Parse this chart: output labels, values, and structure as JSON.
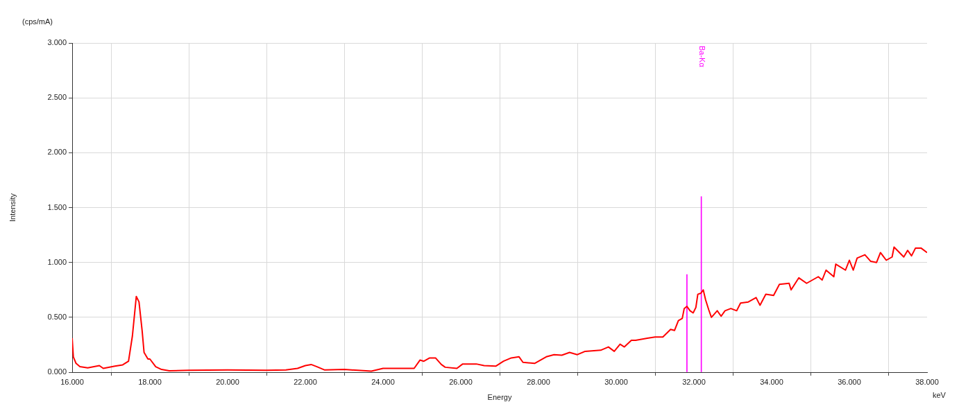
{
  "chart_data": {
    "type": "line",
    "xlabel": "Energy",
    "ylabel": "Intensity",
    "annotations": [
      "(cps/mA)",
      "keV",
      "Ba-Kα"
    ],
    "xlim": [
      16,
      38
    ],
    "ylim": [
      0,
      3
    ],
    "xticks": [
      {
        "value": 16,
        "label": "16.000"
      },
      {
        "value": 18,
        "label": "18.000"
      },
      {
        "value": 20,
        "label": "20.000"
      },
      {
        "value": 22,
        "label": "22.000"
      },
      {
        "value": 24,
        "label": "24.000"
      },
      {
        "value": 26,
        "label": "26.000"
      },
      {
        "value": 28,
        "label": "28.000"
      },
      {
        "value": 30,
        "label": "30.000"
      },
      {
        "value": 32,
        "label": "32.000"
      },
      {
        "value": 34,
        "label": "34.000"
      },
      {
        "value": 36,
        "label": "36.000"
      },
      {
        "value": 38,
        "label": "38.000"
      }
    ],
    "yticks": [
      {
        "value": 0,
        "label": "0.000"
      },
      {
        "value": 0.5,
        "label": "0.500"
      },
      {
        "value": 1,
        "label": "1.000"
      },
      {
        "value": 1.5,
        "label": "1.500"
      },
      {
        "value": 2,
        "label": "2.000"
      },
      {
        "value": 2.5,
        "label": "2.500"
      },
      {
        "value": 3,
        "label": "3.000"
      }
    ],
    "grid": true,
    "legend": false,
    "marker": "none",
    "line_style": "solid",
    "series": [
      {
        "color": "#ff0000",
        "x": [
          16.0,
          16.03,
          16.1,
          16.2,
          16.4,
          16.7,
          16.8,
          17.1,
          17.3,
          17.45,
          17.55,
          17.65,
          17.72,
          17.8,
          17.85,
          17.95,
          18.0,
          18.15,
          18.3,
          18.5,
          19.0,
          20.0,
          21.0,
          21.5,
          21.8,
          22.0,
          22.15,
          22.3,
          22.5,
          23.0,
          23.7,
          24.0,
          24.8,
          24.95,
          25.05,
          25.2,
          25.35,
          25.5,
          25.6,
          25.9,
          26.05,
          26.4,
          26.6,
          26.9,
          27.1,
          27.3,
          27.5,
          27.6,
          27.9,
          28.2,
          28.4,
          28.6,
          28.8,
          29.0,
          29.2,
          29.6,
          29.8,
          29.95,
          30.1,
          30.21,
          30.39,
          30.5,
          30.8,
          31.0,
          31.2,
          31.4,
          31.5,
          31.6,
          31.7,
          31.75,
          31.82,
          31.9,
          31.98,
          32.05,
          32.1,
          32.18,
          32.24,
          32.3,
          32.38,
          32.45,
          32.6,
          32.7,
          32.8,
          32.95,
          33.1,
          33.2,
          33.4,
          33.6,
          33.7,
          33.85,
          34.05,
          34.2,
          34.45,
          34.5,
          34.7,
          34.9,
          35.2,
          35.3,
          35.4,
          35.6,
          35.65,
          35.9,
          36.0,
          36.1,
          36.2,
          36.4,
          36.55,
          36.7,
          36.8,
          36.95,
          37.1,
          37.15,
          37.4,
          37.5,
          37.6,
          37.7,
          37.85,
          38.0
        ],
        "values": [
          0.31,
          0.14,
          0.08,
          0.05,
          0.04,
          0.06,
          0.035,
          0.055,
          0.067,
          0.1,
          0.33,
          0.69,
          0.64,
          0.38,
          0.18,
          0.12,
          0.12,
          0.05,
          0.025,
          0.012,
          0.017,
          0.02,
          0.017,
          0.02,
          0.035,
          0.06,
          0.07,
          0.05,
          0.02,
          0.025,
          0.01,
          0.035,
          0.035,
          0.11,
          0.1,
          0.13,
          0.13,
          0.07,
          0.045,
          0.035,
          0.075,
          0.075,
          0.06,
          0.055,
          0.1,
          0.13,
          0.14,
          0.09,
          0.08,
          0.14,
          0.16,
          0.155,
          0.18,
          0.16,
          0.19,
          0.2,
          0.23,
          0.19,
          0.255,
          0.23,
          0.29,
          0.29,
          0.31,
          0.32,
          0.32,
          0.39,
          0.38,
          0.47,
          0.49,
          0.58,
          0.6,
          0.56,
          0.54,
          0.59,
          0.71,
          0.72,
          0.75,
          0.66,
          0.57,
          0.5,
          0.56,
          0.51,
          0.56,
          0.58,
          0.56,
          0.63,
          0.64,
          0.68,
          0.61,
          0.71,
          0.7,
          0.8,
          0.81,
          0.75,
          0.86,
          0.81,
          0.87,
          0.84,
          0.93,
          0.87,
          0.985,
          0.93,
          1.02,
          0.93,
          1.04,
          1.07,
          1.01,
          1.0,
          1.09,
          1.02,
          1.05,
          1.14,
          1.05,
          1.11,
          1.06,
          1.13,
          1.13,
          1.09
        ]
      },
      {
        "type": "bar",
        "color": "#ff00ff",
        "x": [
          31.82,
          32.19
        ],
        "values": [
          0.89,
          1.6
        ]
      }
    ]
  }
}
